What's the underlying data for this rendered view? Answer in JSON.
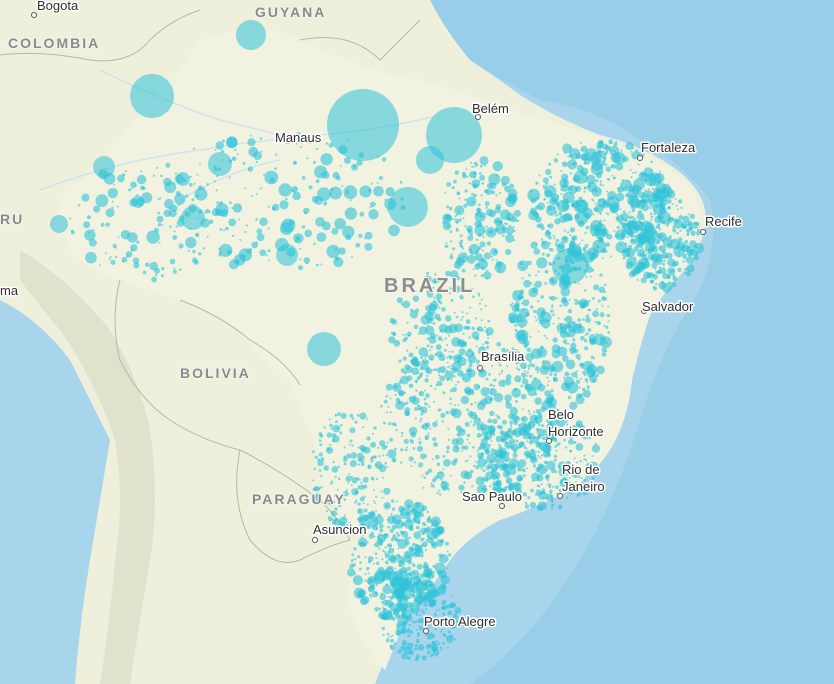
{
  "countries": {
    "colombia": "COLOMBIA",
    "guyana": "GUYANA",
    "brazil": "BRAZIL",
    "bolivia": "BOLIVIA",
    "paraguay": "PARAGUAY",
    "peru": "RU"
  },
  "cities": {
    "bogota": "Bogota",
    "manaus": "Manaus",
    "belem": "Belém",
    "fortaleza": "Fortaleza",
    "recife": "Recife",
    "salvador": "Salvador",
    "brasilia": "Brasília",
    "belo_line1": "Belo",
    "belo_line2": "Horizonte",
    "rio_line1": "Rio de",
    "rio_line2": "Janeiro",
    "sao_paulo": "Sao Paulo",
    "asuncion": "Asuncion",
    "porto_alegre": "Porto Alegre",
    "lima": "ma"
  },
  "colors": {
    "ocean": "#a9d5ec",
    "land": "#eef0dc",
    "brazil_land": "#f1f1df",
    "symbol": "#2ec3d9"
  },
  "icons": {
    "city": "city-dot-icon",
    "symbol": "proportional-circle-icon"
  }
}
